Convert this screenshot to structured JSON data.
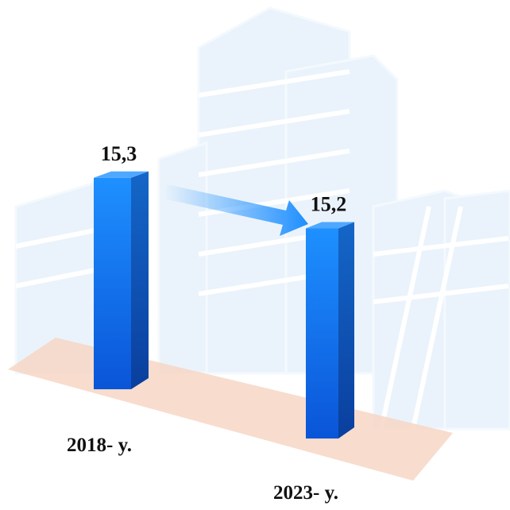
{
  "chart_data": {
    "type": "bar",
    "categories": [
      "2018- y.",
      "2023- y."
    ],
    "values": [
      15.3,
      15.2
    ],
    "value_labels": [
      "15,3",
      "15,2"
    ],
    "color": "#1a7ef0"
  }
}
